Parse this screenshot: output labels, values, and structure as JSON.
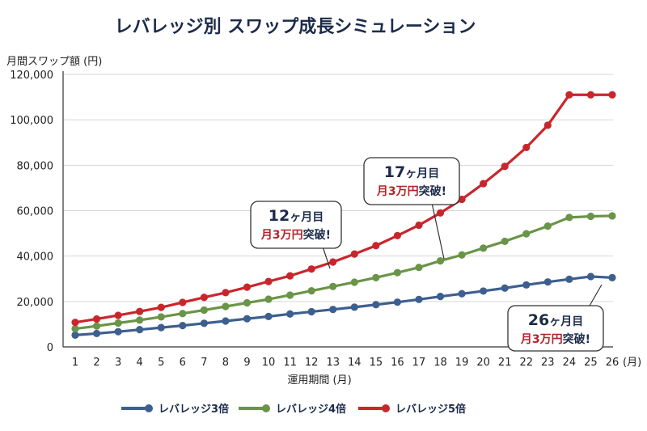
{
  "chart_data": {
    "type": "line",
    "title": "レバレッジ別 スワップ成長シミュレーション",
    "ylabel": "月間スワップ額 (円)",
    "xlabel": "運用期間 (月)",
    "x_unit": "(月)",
    "ylim": [
      0,
      120000
    ],
    "yticks": [
      "0",
      "20,000",
      "40,000",
      "60,000",
      "80,000",
      "100,000",
      "120,000"
    ],
    "x": [
      1,
      2,
      3,
      4,
      5,
      6,
      7,
      8,
      9,
      10,
      11,
      12,
      13,
      14,
      15,
      16,
      17,
      18,
      19,
      20,
      21,
      22,
      23,
      24,
      25,
      26
    ],
    "grid": "horizontal",
    "legend_position": "bottom",
    "series": [
      {
        "name": "レバレッジ3倍",
        "color": "#3d5f8f",
        "values": [
          5200,
          5900,
          6700,
          7600,
          8500,
          9400,
          10400,
          11400,
          12400,
          13400,
          14500,
          15500,
          16500,
          17500,
          18600,
          19700,
          20900,
          22200,
          23400,
          24600,
          25900,
          27300,
          28600,
          29800,
          31000,
          30500
        ]
      },
      {
        "name": "レバレッジ4倍",
        "color": "#6a9448",
        "values": [
          8000,
          9200,
          10500,
          11800,
          13200,
          14700,
          16200,
          17800,
          19400,
          21000,
          22800,
          24700,
          26600,
          28500,
          30500,
          32700,
          35000,
          37900,
          40500,
          43500,
          46500,
          49800,
          53200,
          57000,
          57500,
          57700
        ]
      },
      {
        "name": "レバレッジ5倍",
        "color": "#c9262c",
        "values": [
          10800,
          12300,
          13900,
          15600,
          17400,
          19600,
          21800,
          23900,
          26300,
          28800,
          31300,
          34300,
          37400,
          40900,
          44600,
          49000,
          53600,
          59000,
          65000,
          71900,
          79500,
          87800,
          97600,
          111000,
          111000,
          111000
        ]
      }
    ],
    "callouts": [
      {
        "line1_num": "12",
        "line1_rest": "ヶ月目",
        "line2_red": "月3万円",
        "line2_rest": "突破!"
      },
      {
        "line1_num": "17",
        "line1_rest": "ヶ月目",
        "line2_red": "月3万円",
        "line2_rest": "突破!"
      },
      {
        "line1_num": "26",
        "line1_rest": "ヶ月目",
        "line2_red": "月3万円",
        "line2_rest": "突破!"
      }
    ]
  }
}
